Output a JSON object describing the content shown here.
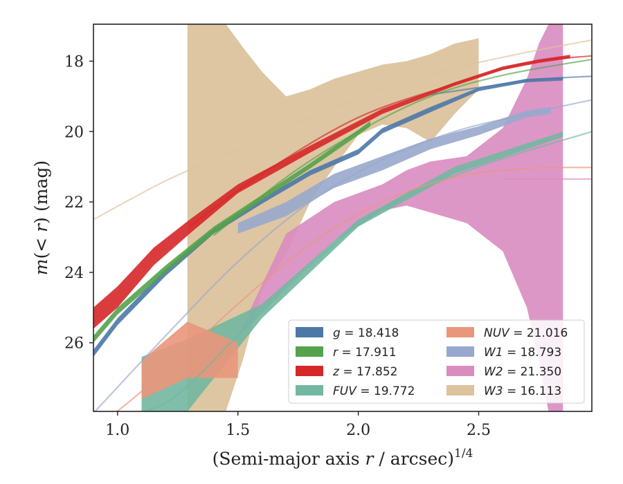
{
  "chart_data": {
    "type": "line",
    "xlabel_main": "(Semi-major axis ",
    "xlabel_var": "r",
    "xlabel_unit": " / arcsec)",
    "xlabel_exp": "1/4",
    "ylabel_main": "m",
    "ylabel_paren_open": "(",
    "ylabel_var": "< r",
    "ylabel_paren_close": ")",
    "ylabel_unit": " (mag)",
    "xlim": [
      0.9,
      2.97
    ],
    "ylim": [
      27.95,
      16.95
    ],
    "y_inverted": true,
    "xticks": [
      1.0,
      1.5,
      2.0,
      2.5
    ],
    "xtick_labels": [
      "1.0",
      "1.5",
      "2.0",
      "2.5"
    ],
    "yticks": [
      18,
      20,
      22,
      24,
      26
    ],
    "ytick_labels": [
      "18",
      "20",
      "22",
      "24",
      "26"
    ],
    "grid": false,
    "legend_placement": "lower-right",
    "series": [
      {
        "name": "g = 18.418",
        "label_var": "g",
        "label_val": " = 18.418",
        "color": "#4c78a8",
        "band": [
          [
            0.9,
            26.2,
            26.4
          ],
          [
            1.0,
            25.3,
            25.5
          ],
          [
            1.2,
            23.9,
            24.1
          ],
          [
            1.4,
            22.75,
            22.9
          ],
          [
            1.6,
            21.9,
            22.05
          ],
          [
            1.8,
            21.1,
            21.25
          ],
          [
            2.0,
            20.5,
            20.65
          ],
          [
            2.1,
            19.9,
            20.05
          ],
          [
            2.3,
            19.3,
            19.45
          ],
          [
            2.5,
            18.75,
            18.85
          ],
          [
            2.7,
            18.5,
            18.6
          ],
          [
            2.85,
            18.45,
            18.55
          ]
        ],
        "fit": [
          [
            2.3,
            18.95
          ],
          [
            2.5,
            18.75
          ],
          [
            2.7,
            18.55
          ],
          [
            2.85,
            18.47
          ],
          [
            2.97,
            18.43
          ]
        ]
      },
      {
        "name": "r = 17.911",
        "label_var": "r",
        "label_val": " = 17.911",
        "color": "#54a24b",
        "band": [
          [
            0.9,
            25.8,
            26.0
          ],
          [
            1.0,
            25.0,
            25.2
          ],
          [
            1.2,
            23.8,
            24.0
          ],
          [
            1.4,
            22.7,
            22.9
          ],
          [
            1.6,
            21.8,
            21.95
          ],
          [
            1.8,
            20.9,
            21.05
          ],
          [
            2.0,
            19.95,
            20.1
          ],
          [
            2.05,
            19.7,
            19.85
          ]
        ],
        "fit": [
          [
            1.4,
            22.95
          ],
          [
            1.7,
            21.3
          ],
          [
            2.0,
            20.0
          ],
          [
            2.3,
            19.0
          ],
          [
            2.6,
            18.4
          ],
          [
            2.97,
            17.95
          ]
        ]
      },
      {
        "name": "z = 17.852",
        "label_var": "z",
        "label_val": " = 17.852",
        "color": "#d62728",
        "band": [
          [
            0.9,
            25.0,
            25.6
          ],
          [
            1.0,
            24.4,
            25.0
          ],
          [
            1.15,
            23.3,
            23.8
          ],
          [
            1.3,
            22.5,
            22.9
          ],
          [
            1.5,
            21.5,
            21.75
          ],
          [
            1.8,
            20.4,
            20.6
          ],
          [
            2.1,
            19.35,
            19.5
          ],
          [
            2.4,
            18.6,
            18.7
          ],
          [
            2.6,
            18.15,
            18.25
          ],
          [
            2.75,
            17.95,
            18.05
          ],
          [
            2.88,
            17.82,
            17.92
          ]
        ],
        "fit": [
          [
            1.3,
            22.7
          ],
          [
            1.6,
            21.2
          ],
          [
            2.0,
            19.6
          ],
          [
            2.4,
            18.65
          ],
          [
            2.7,
            18.05
          ],
          [
            2.97,
            17.85
          ]
        ]
      },
      {
        "name": "FUV = 19.772",
        "label_var": "FUV",
        "label_val": " = 19.772",
        "color": "#72b7a1",
        "band": [
          [
            1.1,
            26.4,
            27.95
          ],
          [
            1.29,
            25.9,
            27.95
          ],
          [
            1.6,
            24.9,
            25.3
          ],
          [
            2.0,
            22.5,
            22.7
          ],
          [
            2.4,
            21.0,
            21.2
          ],
          [
            2.85,
            20.0,
            20.15
          ]
        ],
        "fit": [
          [
            0.9,
            28.2
          ],
          [
            1.2,
            27.7
          ],
          [
            1.5,
            25.8
          ],
          [
            1.8,
            23.8
          ],
          [
            2.1,
            22.2
          ],
          [
            2.5,
            21.0
          ],
          [
            2.97,
            20.0
          ]
        ]
      },
      {
        "name": "NUV = 21.016",
        "label_var": "NUV",
        "label_val": " = 21.016",
        "color": "#e9967a",
        "band": [
          [
            1.1,
            26.5,
            27.6
          ],
          [
            1.29,
            25.4,
            27.0
          ],
          [
            1.5,
            26.0,
            27.0
          ]
        ],
        "fit": [
          [
            0.9,
            28.5
          ],
          [
            1.2,
            26.8
          ],
          [
            1.5,
            24.9
          ],
          [
            1.8,
            23.2
          ],
          [
            2.1,
            22.0
          ],
          [
            2.4,
            21.3
          ],
          [
            2.7,
            21.05
          ],
          [
            2.97,
            21.02
          ]
        ]
      },
      {
        "name": "W1 = 18.793",
        "label_var": "W1",
        "label_val": " = 18.793",
        "color": "#98a8cc",
        "band": [
          [
            1.5,
            22.6,
            22.9
          ],
          [
            1.7,
            22.0,
            22.4
          ],
          [
            1.9,
            21.2,
            21.6
          ],
          [
            2.1,
            20.7,
            21.1
          ],
          [
            2.3,
            20.2,
            20.5
          ],
          [
            2.5,
            19.85,
            20.1
          ],
          [
            2.7,
            19.4,
            19.6
          ],
          [
            2.8,
            19.3,
            19.5
          ]
        ],
        "fit": [
          [
            0.9,
            28.0
          ],
          [
            1.2,
            25.8
          ],
          [
            1.5,
            23.7
          ],
          [
            1.8,
            22.0
          ],
          [
            2.1,
            20.8
          ],
          [
            2.4,
            20.0
          ],
          [
            2.7,
            19.5
          ],
          [
            2.97,
            19.1
          ]
        ]
      },
      {
        "name": "W2 = 21.350",
        "label_var": "W2",
        "label_val": " = 21.350",
        "color": "#d98cc0",
        "band": [
          [
            1.5,
            25.8,
            25.8
          ],
          [
            1.7,
            22.9,
            24.4
          ],
          [
            1.9,
            22.0,
            23.1
          ],
          [
            2.1,
            21.5,
            22.25
          ],
          [
            2.2,
            21.1,
            22.1
          ],
          [
            2.3,
            20.85,
            22.3
          ],
          [
            2.45,
            20.7,
            22.6
          ],
          [
            2.6,
            19.9,
            23.4
          ],
          [
            2.7,
            18.5,
            25.0
          ],
          [
            2.75,
            17.5,
            26.5
          ],
          [
            2.79,
            16.95,
            27.95
          ],
          [
            2.85,
            16.95,
            27.95
          ]
        ],
        "fit": [
          [
            2.6,
            21.35
          ],
          [
            2.97,
            21.35
          ]
        ]
      },
      {
        "name": "W3 = 16.113",
        "label_var": "W3",
        "label_val": " = 16.113",
        "color": "#dcc39e",
        "band": [
          [
            1.29,
            16.95,
            27.95
          ],
          [
            1.35,
            16.95,
            27.95
          ],
          [
            1.45,
            16.95,
            27.95
          ],
          [
            1.52,
            17.6,
            26.5
          ],
          [
            1.6,
            18.3,
            24.5
          ],
          [
            1.7,
            19.0,
            23.5
          ],
          [
            1.8,
            18.8,
            22.0
          ],
          [
            1.9,
            18.5,
            21.0
          ],
          [
            2.0,
            18.3,
            20.1
          ],
          [
            2.1,
            18.1,
            19.8
          ],
          [
            2.2,
            18.0,
            19.9
          ],
          [
            2.3,
            17.8,
            20.3
          ],
          [
            2.4,
            17.5,
            19.5
          ],
          [
            2.5,
            17.35,
            18.8
          ]
        ],
        "fit": [
          [
            0.9,
            22.5
          ],
          [
            1.2,
            21.4
          ],
          [
            1.5,
            20.5
          ],
          [
            1.8,
            19.6
          ],
          [
            2.1,
            18.8
          ],
          [
            2.4,
            18.2
          ],
          [
            2.7,
            17.75
          ],
          [
            2.97,
            17.4
          ]
        ]
      }
    ]
  }
}
